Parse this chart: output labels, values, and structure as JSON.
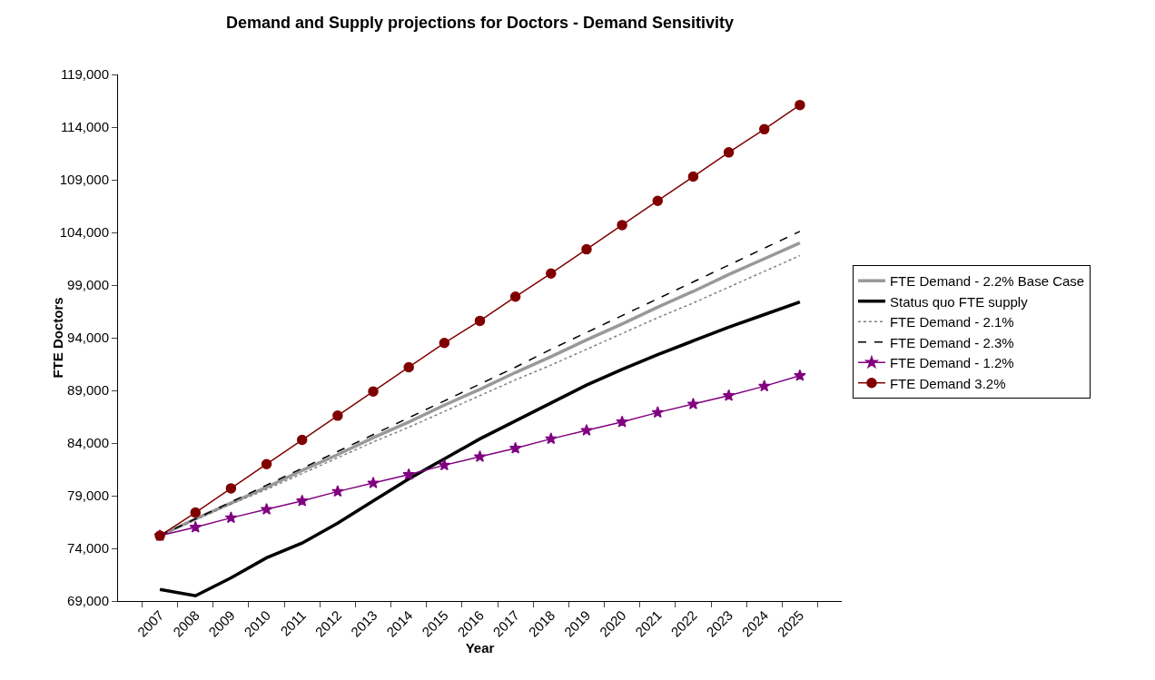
{
  "chart_data": {
    "type": "line",
    "title": "Demand and Supply projections for Doctors - Demand Sensitivity",
    "xlabel": "Year",
    "ylabel": "FTE Doctors",
    "categories": [
      "2007",
      "2008",
      "2009",
      "2010",
      "2011",
      "2012",
      "2013",
      "2014",
      "2015",
      "2016",
      "2017",
      "2018",
      "2019",
      "2020",
      "2021",
      "2022",
      "2023",
      "2024",
      "2025"
    ],
    "series": [
      {
        "name": "FTE Demand - 2.2% Base Case",
        "color": "#999999",
        "line_style": "solid",
        "marker": "none",
        "values": [
          75200,
          76800,
          78300,
          79800,
          81400,
          82900,
          84500,
          86000,
          87600,
          89100,
          90700,
          92200,
          93800,
          95300,
          96900,
          98400,
          100000,
          101500,
          103000
        ]
      },
      {
        "name": "Status quo FTE supply",
        "color": "#000000",
        "line_style": "solid",
        "marker": "none",
        "values": [
          70100,
          69500,
          71200,
          73100,
          74500,
          76400,
          78500,
          80600,
          82500,
          84400,
          86100,
          87800,
          89500,
          91000,
          92400,
          93700,
          95000,
          96200,
          97400
        ]
      },
      {
        "name": "FTE Demand - 2.1%",
        "color": "#808080",
        "line_style": "dotted",
        "marker": "none",
        "values": [
          75200,
          76700,
          78200,
          79600,
          81100,
          82600,
          84100,
          85500,
          87000,
          88500,
          90000,
          91400,
          92900,
          94400,
          95900,
          97300,
          98800,
          100300,
          101800
        ]
      },
      {
        "name": "FTE Demand - 2.3%",
        "color": "#000000",
        "line_style": "dashed",
        "marker": "none",
        "values": [
          75200,
          76800,
          78400,
          80000,
          81600,
          83200,
          84800,
          86400,
          88000,
          89600,
          91200,
          92900,
          94500,
          96100,
          97700,
          99300,
          100900,
          102500,
          104100
        ]
      },
      {
        "name": "FTE Demand - 1.2%",
        "color": "#800080",
        "line_style": "solid",
        "marker": "star",
        "values": [
          75200,
          76000,
          76900,
          77700,
          78500,
          79400,
          80200,
          81000,
          81900,
          82700,
          83500,
          84400,
          85200,
          86000,
          86900,
          87700,
          88500,
          89400,
          90400
        ]
      },
      {
        "name": "FTE Demand 3.2%",
        "color": "#800000",
        "line_style": "solid",
        "marker": "circle",
        "values": [
          75200,
          77400,
          79700,
          82000,
          84300,
          86600,
          88900,
          91200,
          93500,
          95600,
          97900,
          100100,
          102400,
          104700,
          107000,
          109300,
          111600,
          113800,
          116100
        ]
      }
    ],
    "ylim": [
      69000,
      119000
    ],
    "yticks": [
      {
        "value": 69000,
        "label": "69,000"
      },
      {
        "value": 74000,
        "label": "74,000"
      },
      {
        "value": 79000,
        "label": "79,000"
      },
      {
        "value": 84000,
        "label": "84,000"
      },
      {
        "value": 89000,
        "label": "89,000"
      },
      {
        "value": 94000,
        "label": "94,000"
      },
      {
        "value": 99000,
        "label": "99,000"
      },
      {
        "value": 104000,
        "label": "104,000"
      },
      {
        "value": 109000,
        "label": "109,000"
      },
      {
        "value": 114000,
        "label": "114,000"
      },
      {
        "value": 119000,
        "label": "119,000"
      }
    ],
    "grid": false,
    "legend": "right"
  }
}
